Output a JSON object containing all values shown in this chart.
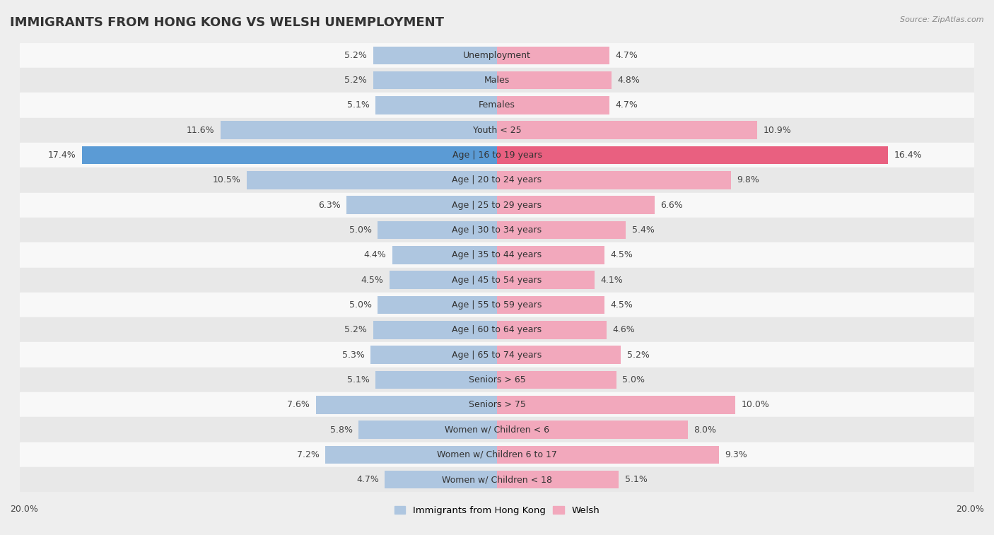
{
  "title": "IMMIGRANTS FROM HONG KONG VS WELSH UNEMPLOYMENT",
  "source": "Source: ZipAtlas.com",
  "categories": [
    "Unemployment",
    "Males",
    "Females",
    "Youth < 25",
    "Age | 16 to 19 years",
    "Age | 20 to 24 years",
    "Age | 25 to 29 years",
    "Age | 30 to 34 years",
    "Age | 35 to 44 years",
    "Age | 45 to 54 years",
    "Age | 55 to 59 years",
    "Age | 60 to 64 years",
    "Age | 65 to 74 years",
    "Seniors > 65",
    "Seniors > 75",
    "Women w/ Children < 6",
    "Women w/ Children 6 to 17",
    "Women w/ Children < 18"
  ],
  "hk_values": [
    5.2,
    5.2,
    5.1,
    11.6,
    17.4,
    10.5,
    6.3,
    5.0,
    4.4,
    4.5,
    5.0,
    5.2,
    5.3,
    5.1,
    7.6,
    5.8,
    7.2,
    4.7
  ],
  "welsh_values": [
    4.7,
    4.8,
    4.7,
    10.9,
    16.4,
    9.8,
    6.6,
    5.4,
    4.5,
    4.1,
    4.5,
    4.6,
    5.2,
    5.0,
    10.0,
    8.0,
    9.3,
    5.1
  ],
  "hk_color": "#aec6e0",
  "welsh_color": "#f2a8bc",
  "hk_highlight_color": "#5b9bd5",
  "welsh_highlight_color": "#e96080",
  "background_color": "#eeeeee",
  "row_bg_light": "#f8f8f8",
  "row_bg_dark": "#e8e8e8",
  "max_val": 20.0,
  "legend_hk": "Immigrants from Hong Kong",
  "legend_welsh": "Welsh",
  "title_fontsize": 13,
  "label_fontsize": 9,
  "cat_fontsize": 9
}
